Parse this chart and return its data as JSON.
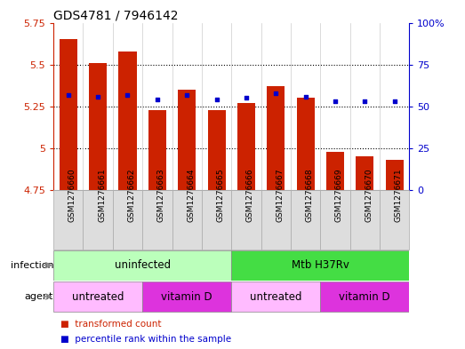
{
  "title": "GDS4781 / 7946142",
  "samples": [
    "GSM1276660",
    "GSM1276661",
    "GSM1276662",
    "GSM1276663",
    "GSM1276664",
    "GSM1276665",
    "GSM1276666",
    "GSM1276667",
    "GSM1276668",
    "GSM1276669",
    "GSM1276670",
    "GSM1276671"
  ],
  "transformed_count": [
    5.65,
    5.51,
    5.58,
    5.23,
    5.35,
    5.23,
    5.27,
    5.37,
    5.3,
    4.98,
    4.95,
    4.93
  ],
  "percentile_rank": [
    57,
    56,
    57,
    54,
    57,
    54,
    55,
    58,
    56,
    53,
    53,
    53
  ],
  "ylim_left": [
    4.75,
    5.75
  ],
  "ylim_right": [
    0,
    100
  ],
  "yticks_left": [
    4.75,
    5.0,
    5.25,
    5.5,
    5.75
  ],
  "yticks_right": [
    0,
    25,
    50,
    75,
    100
  ],
  "ytick_labels_left": [
    "4.75",
    "5",
    "5.25",
    "5.5",
    "5.75"
  ],
  "ytick_labels_right": [
    "0",
    "25",
    "50",
    "75",
    "100%"
  ],
  "bar_color": "#cc2200",
  "dot_color": "#0000cc",
  "bar_bottom": 4.75,
  "infection_groups": [
    {
      "text": "uninfected",
      "start": 0,
      "end": 5,
      "color": "#bbffbb"
    },
    {
      "text": "Mtb H37Rv",
      "start": 6,
      "end": 11,
      "color": "#44dd44"
    }
  ],
  "agent_groups": [
    {
      "text": "untreated",
      "start": 0,
      "end": 2,
      "color": "#ffbbff"
    },
    {
      "text": "vitamin D",
      "start": 3,
      "end": 5,
      "color": "#dd33dd"
    },
    {
      "text": "untreated",
      "start": 6,
      "end": 8,
      "color": "#ffbbff"
    },
    {
      "text": "vitamin D",
      "start": 9,
      "end": 11,
      "color": "#dd33dd"
    }
  ],
  "legend_items": [
    {
      "label": "transformed count",
      "color": "#cc2200"
    },
    {
      "label": "percentile rank within the sample",
      "color": "#0000cc"
    }
  ],
  "background_color": "#ffffff",
  "sample_box_color": "#dddddd",
  "label_infection": "infection",
  "label_agent": "agent",
  "grid_yticks": [
    5.0,
    5.25,
    5.5
  ],
  "title_fontsize": 10,
  "bar_width": 0.6
}
